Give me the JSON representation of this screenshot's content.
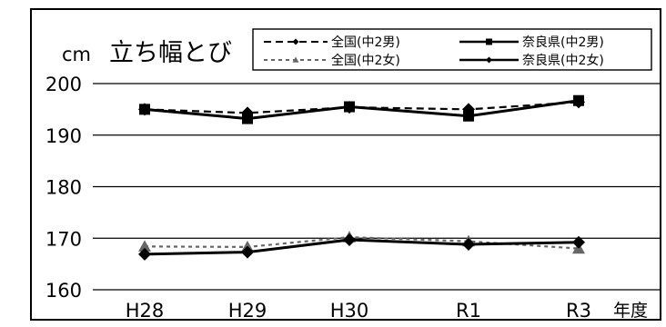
{
  "chart_data": {
    "type": "line",
    "title": "立ち幅とび",
    "ylabel": "cm",
    "xlabel": "年度",
    "categories": [
      "H28",
      "H29",
      "H30",
      "R1",
      "R3"
    ],
    "ylim": [
      160,
      200
    ],
    "yticks": [
      160,
      170,
      180,
      190,
      200
    ],
    "grid": true,
    "legend_position": "top-right",
    "series": [
      {
        "name": "全国(中2男)",
        "values": [
          195.0,
          194.3,
          195.4,
          195.0,
          196.4
        ],
        "style": "dashed",
        "marker": "diamond",
        "color": "#000000"
      },
      {
        "name": "奈良県(中2男)",
        "values": [
          195.0,
          193.2,
          195.5,
          193.7,
          196.7
        ],
        "style": "solid",
        "marker": "square",
        "color": "#000000"
      },
      {
        "name": "全国(中2女)",
        "values": [
          168.4,
          168.3,
          170.2,
          169.4,
          168.0
        ],
        "style": "dotted",
        "marker": "triangle",
        "color": "#666666"
      },
      {
        "name": "奈良県(中2女)",
        "values": [
          166.9,
          167.3,
          169.7,
          168.8,
          169.2
        ],
        "style": "solid",
        "marker": "diamond",
        "color": "#000000"
      }
    ]
  }
}
